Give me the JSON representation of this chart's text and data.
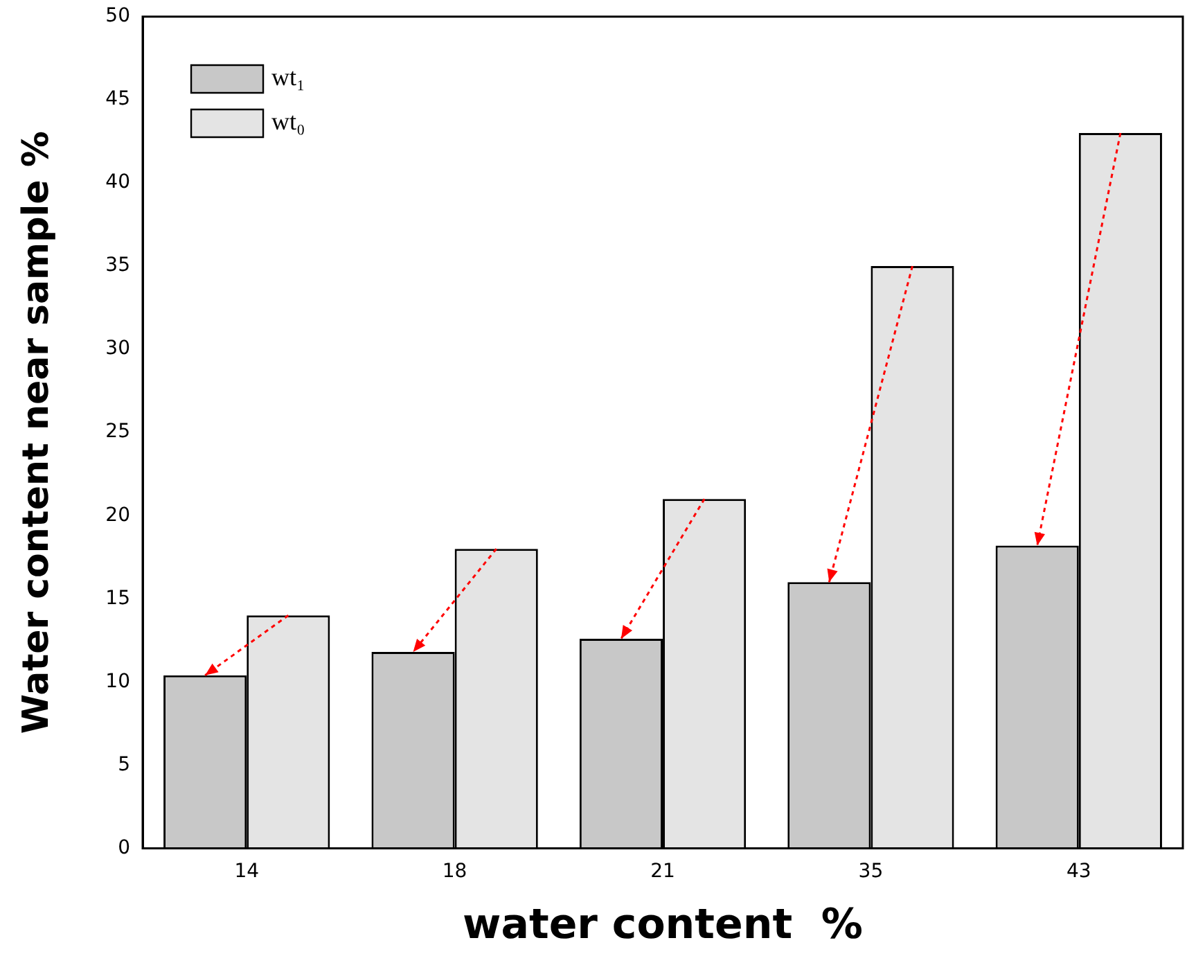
{
  "chart_data": {
    "type": "bar",
    "xlabel": "water content  %",
    "ylabel": "Water content near sample %",
    "categories": [
      "14",
      "18",
      "21",
      "35",
      "43"
    ],
    "series": [
      {
        "name": "wt₁",
        "color": "#c8c8c8",
        "values": [
          10.4,
          11.8,
          12.6,
          16.0,
          18.2
        ]
      },
      {
        "name": "wt₀",
        "color": "#e4e4e4",
        "values": [
          14,
          18,
          21,
          35,
          43
        ]
      }
    ],
    "ylim": [
      0,
      50
    ],
    "yticks": [
      0,
      5,
      10,
      15,
      20,
      25,
      30,
      35,
      40,
      45,
      50
    ],
    "grid": false,
    "legend": "top left"
  }
}
